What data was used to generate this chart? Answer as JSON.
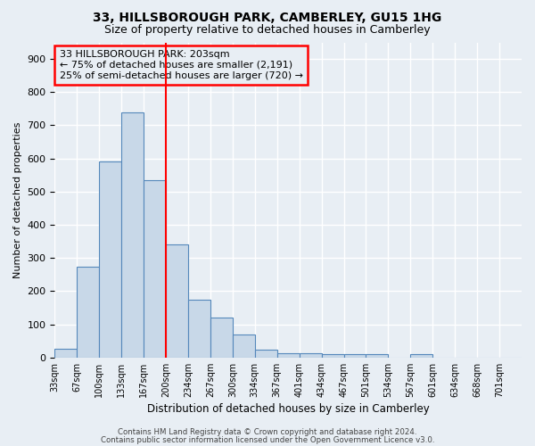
{
  "title": "33, HILLSBOROUGH PARK, CAMBERLEY, GU15 1HG",
  "subtitle": "Size of property relative to detached houses in Camberley",
  "xlabel": "Distribution of detached houses by size in Camberley",
  "ylabel": "Number of detached properties",
  "bar_color": "#c8d8e8",
  "bar_edge_color": "#5588bb",
  "background_color": "#e8eef4",
  "grid_color": "#ffffff",
  "categories": [
    "33sqm",
    "67sqm",
    "100sqm",
    "133sqm",
    "167sqm",
    "200sqm",
    "234sqm",
    "267sqm",
    "300sqm",
    "334sqm",
    "367sqm",
    "401sqm",
    "434sqm",
    "467sqm",
    "501sqm",
    "534sqm",
    "567sqm",
    "601sqm",
    "634sqm",
    "668sqm",
    "701sqm"
  ],
  "values": [
    27,
    275,
    590,
    740,
    535,
    340,
    175,
    120,
    70,
    25,
    14,
    13,
    10,
    10,
    10,
    0,
    9,
    0,
    0,
    0,
    0
  ],
  "redline_index": 5,
  "annotation_line1": "33 HILLSBOROUGH PARK: 203sqm",
  "annotation_line2": "← 75% of detached houses are smaller (2,191)",
  "annotation_line3": "25% of semi-detached houses are larger (720) →",
  "ylim": [
    0,
    950
  ],
  "yticks": [
    0,
    100,
    200,
    300,
    400,
    500,
    600,
    700,
    800,
    900
  ],
  "footnote1": "Contains HM Land Registry data © Crown copyright and database right 2024.",
  "footnote2": "Contains public sector information licensed under the Open Government Licence v3.0."
}
